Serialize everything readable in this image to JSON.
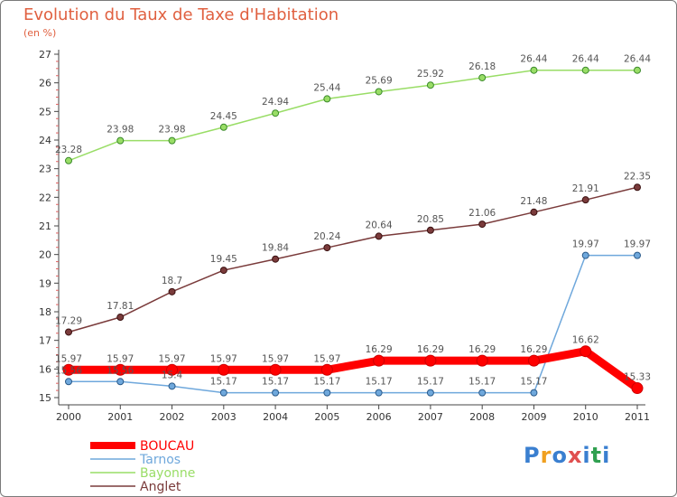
{
  "chart_data": {
    "type": "line",
    "title": "Evolution du Taux de Taxe d'Habitation",
    "unit": "(en %)",
    "x": [
      "2000",
      "2001",
      "2002",
      "2003",
      "2004",
      "2005",
      "2006",
      "2007",
      "2008",
      "2009",
      "2010",
      "2011"
    ],
    "ylim": [
      15,
      27
    ],
    "yticks": [
      15,
      16,
      17,
      18,
      19,
      20,
      21,
      22,
      23,
      24,
      25,
      26,
      27
    ],
    "grid": false,
    "legend_position": "bottom-left",
    "series": [
      {
        "name": "BOUCAU",
        "color": "#ff0000",
        "labels": [
          "15.97",
          "15.97",
          "15.97",
          "15.97",
          "15.97",
          "15.97",
          "16.29",
          "16.29",
          "16.29",
          "16.29",
          "16.62",
          "15.33"
        ],
        "values": [
          15.97,
          15.97,
          15.97,
          15.97,
          15.97,
          15.97,
          16.29,
          16.29,
          16.29,
          16.29,
          16.62,
          15.33
        ]
      },
      {
        "name": "Tarnos",
        "color": "#6fa8dc",
        "labels": [
          "15.56",
          "15.56",
          "15.4",
          "15.17",
          "15.17",
          "15.17",
          "15.17",
          "15.17",
          "15.17",
          "15.17",
          "19.97",
          "19.97"
        ],
        "values": [
          15.56,
          15.56,
          15.4,
          15.17,
          15.17,
          15.17,
          15.17,
          15.17,
          15.17,
          15.17,
          19.97,
          19.97
        ]
      },
      {
        "name": "Bayonne",
        "color": "#99dd66",
        "labels": [
          "23.28",
          "23.98",
          "23.98",
          "24.45",
          "24.94",
          "25.44",
          "25.69",
          "25.92",
          "26.18",
          "26.44",
          "26.44",
          "26.44"
        ],
        "values": [
          23.28,
          23.98,
          23.98,
          24.45,
          24.94,
          25.44,
          25.69,
          25.92,
          26.18,
          26.44,
          26.44,
          26.44
        ]
      },
      {
        "name": "Anglet",
        "color": "#7a3b3b",
        "labels": [
          "17.29",
          "17.81",
          "18.7",
          "19.45",
          "19.84",
          "20.24",
          "20.64",
          "20.85",
          "21.06",
          "21.48",
          "21.91",
          "22.35"
        ],
        "values": [
          17.29,
          17.81,
          18.7,
          19.45,
          19.84,
          20.24,
          20.64,
          20.85,
          21.06,
          21.48,
          21.91,
          22.35
        ]
      }
    ]
  },
  "logo": {
    "text": "Proxiti",
    "colors": [
      "#3a7fd0",
      "#f0a020",
      "#3a7fd0",
      "#e05050",
      "#3a7fd0",
      "#30a050",
      "#3a7fd0"
    ]
  }
}
